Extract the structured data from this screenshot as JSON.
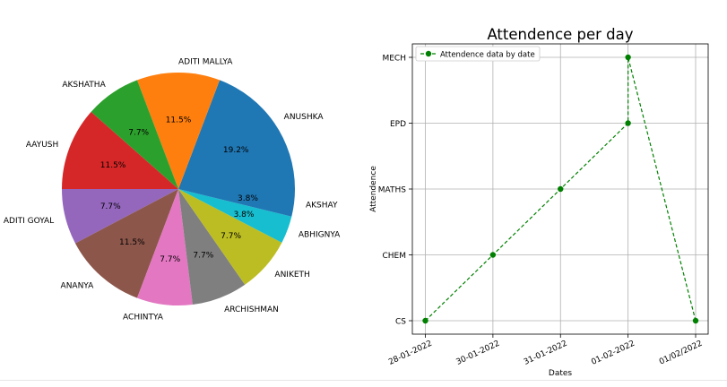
{
  "chart_data": [
    {
      "type": "pie",
      "title": "",
      "start_angle_deg": 0,
      "direction": "counterclockwise",
      "slices": [
        {
          "label": "ANUSHKA",
          "value": 19.2,
          "pct_label": "19.2%",
          "color": "#1f77b4"
        },
        {
          "label": "ADITI MALLYA",
          "value": 11.5,
          "pct_label": "11.5%",
          "color": "#ff7f0e"
        },
        {
          "label": "AKSHATHA",
          "value": 7.7,
          "pct_label": "7.7%",
          "color": "#2ca02c"
        },
        {
          "label": "AAYUSH",
          "value": 11.5,
          "pct_label": "11.5%",
          "color": "#d62728"
        },
        {
          "label": "ADITI GOYAL",
          "value": 7.7,
          "pct_label": "7.7%",
          "color": "#9467bd"
        },
        {
          "label": "ANANYA",
          "value": 11.5,
          "pct_label": "11.5%",
          "color": "#8c564b"
        },
        {
          "label": "ACHINTYA",
          "value": 7.7,
          "pct_label": "7.7%",
          "color": "#e377c2"
        },
        {
          "label": "ARCHISHMAN",
          "value": 7.7,
          "pct_label": "7.7%",
          "color": "#7f7f7f"
        },
        {
          "label": "ANIKETH",
          "value": 7.7,
          "pct_label": "7.7%",
          "color": "#bcbd22"
        },
        {
          "label": "ABHIGNYA",
          "value": 3.8,
          "pct_label": "3.8%",
          "color": "#17becf"
        },
        {
          "label": "AKSHAY",
          "value": 3.8,
          "pct_label": "3.8%",
          "color": "#1f77b4"
        }
      ]
    },
    {
      "type": "line",
      "title": "Attendence per day",
      "xlabel": "Dates",
      "ylabel": "Attendence",
      "grid": true,
      "legend_position": "top-left",
      "categories_x": [
        "28-01-2022",
        "30-01-2022",
        "31-01-2022",
        "01-02-2022",
        "01/02/2022"
      ],
      "categories_y": [
        "CS",
        "CHEM",
        "MATHS",
        "EPD",
        "MECH"
      ],
      "series": [
        {
          "name": "Attendence data by date",
          "color": "#008000",
          "line_style": "dashed",
          "marker": "circle",
          "points": [
            {
              "x": "28-01-2022",
              "y": "CS"
            },
            {
              "x": "30-01-2022",
              "y": "CHEM"
            },
            {
              "x": "31-01-2022",
              "y": "MATHS"
            },
            {
              "x": "01-02-2022",
              "y": "EPD"
            },
            {
              "x": "01-02-2022",
              "y": "MECH"
            },
            {
              "x": "01/02/2022",
              "y": "CS"
            }
          ]
        }
      ]
    }
  ]
}
